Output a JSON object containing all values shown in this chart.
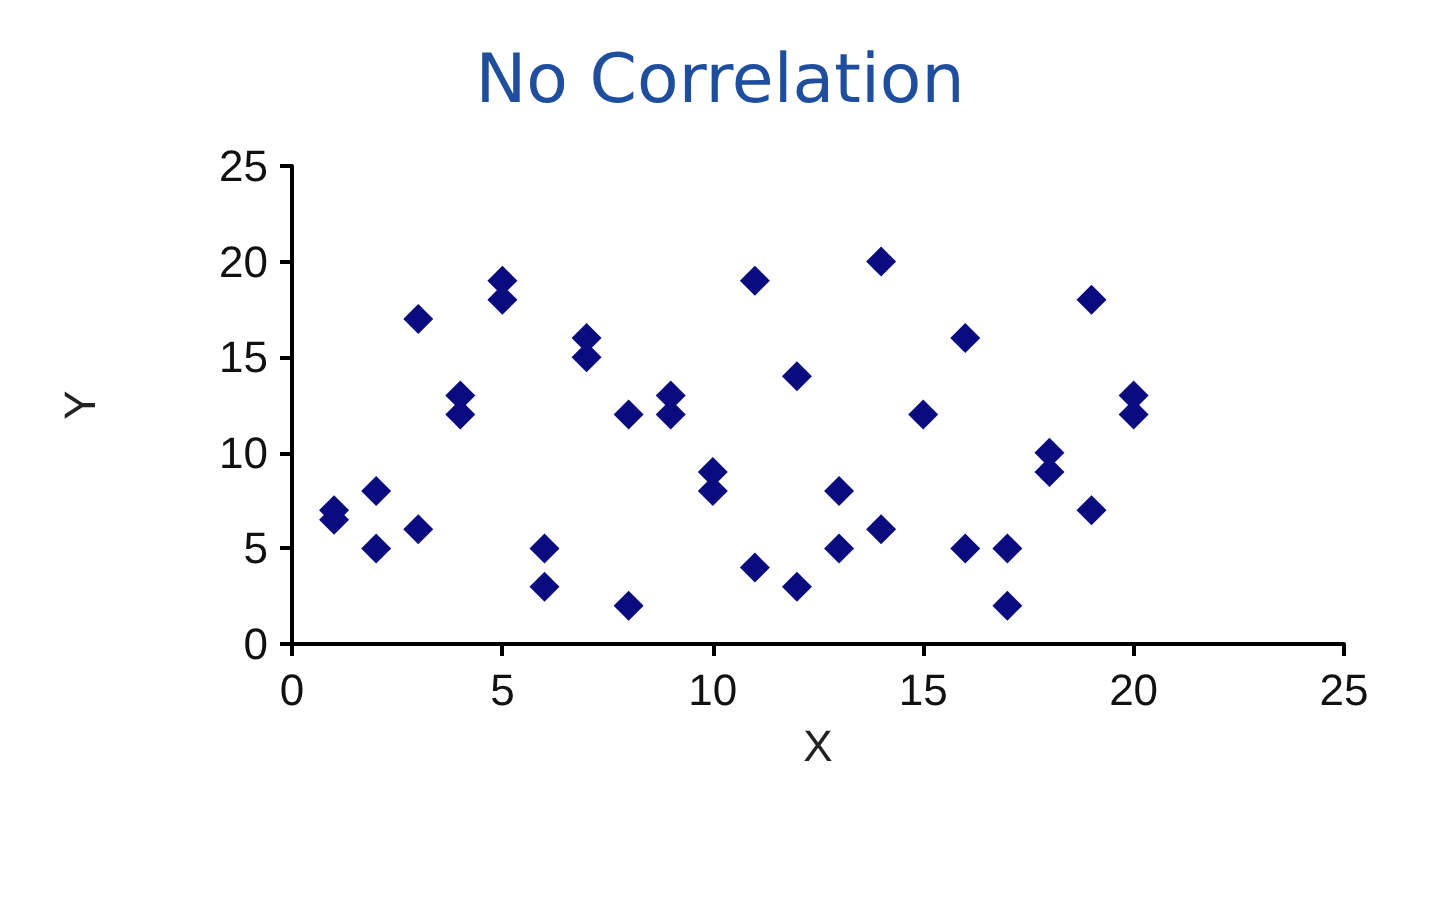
{
  "chart_data": {
    "type": "scatter",
    "title": "No Correlation",
    "xlabel": "X",
    "ylabel": "Y",
    "x": [
      1,
      1,
      2,
      2,
      3,
      3,
      4,
      4,
      5,
      5,
      6,
      6,
      7,
      7,
      8,
      8,
      9,
      9,
      10,
      10,
      11,
      11,
      12,
      12,
      13,
      13,
      14,
      14,
      15,
      16,
      16,
      17,
      17,
      18,
      18,
      19,
      19,
      20,
      20
    ],
    "values": [
      7,
      6.5,
      8,
      5,
      17,
      6,
      13,
      12,
      19,
      18,
      5,
      3,
      16,
      15,
      12,
      2,
      13,
      12,
      9,
      8,
      19,
      4,
      14,
      3,
      8,
      5,
      20,
      6,
      12,
      16,
      5,
      5,
      2,
      10,
      9,
      18,
      7,
      13,
      12
    ],
    "color": "#0b0b80",
    "marker": "diamond",
    "xlim": [
      0,
      25
    ],
    "xticks": [
      0,
      5,
      10,
      15,
      20,
      25
    ],
    "ylim": [
      0,
      25
    ],
    "yticks": [
      0,
      5,
      10,
      15,
      20,
      25
    ],
    "grid": false
  }
}
